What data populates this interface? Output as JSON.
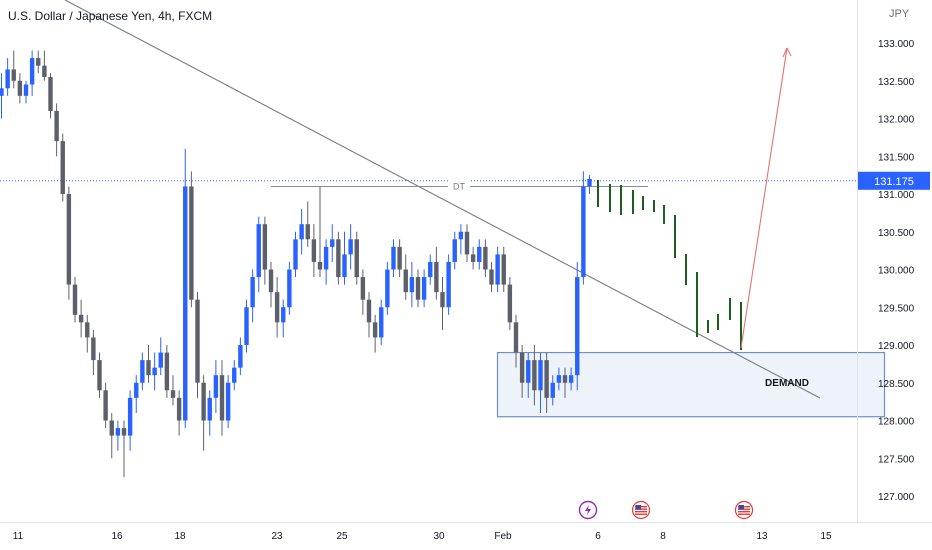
{
  "header": {
    "title": "U.S. Dollar / Japanese Yen, 4h, FXCM",
    "currency": "JPY"
  },
  "price_badge": "131.175",
  "annotations": {
    "dt_label": "DT",
    "demand_label": "DEMAND"
  },
  "event_icons": [
    "lightning-event-icon",
    "us-flag-icon",
    "us-flag-icon"
  ],
  "colors": {
    "up_candle": "#2962ff",
    "down_candle": "#5d606b",
    "projection": "#1b5e20",
    "target_arrow": "#e57373",
    "trendline": "#787b86",
    "demand_border": "#6f8fc3",
    "demand_fill": "#eef3fa",
    "price_line": "#2962ff"
  },
  "chart_data": {
    "type": "candlestick",
    "title": "U.S. Dollar / Japanese Yen, 4h, FXCM",
    "y_axis_label": "JPY",
    "ylim": [
      126.8,
      133.3
    ],
    "y_ticks": [
      "133.000",
      "132.500",
      "132.000",
      "131.500",
      "131.000",
      "130.500",
      "130.000",
      "129.500",
      "129.000",
      "128.500",
      "128.000",
      "127.500",
      "127.000"
    ],
    "x_ticks": [
      "11",
      "16",
      "18",
      "23",
      "25",
      "30",
      "Feb",
      "6",
      "8",
      "13",
      "15"
    ],
    "last_price": 131.175,
    "candles": [
      {
        "o": 132.3,
        "h": 132.6,
        "l": 132.0,
        "c": 132.4
      },
      {
        "o": 132.4,
        "h": 132.8,
        "l": 132.3,
        "c": 132.65
      },
      {
        "o": 132.65,
        "h": 132.9,
        "l": 132.4,
        "c": 132.5
      },
      {
        "o": 132.5,
        "h": 132.6,
        "l": 132.2,
        "c": 132.3
      },
      {
        "o": 132.3,
        "h": 132.5,
        "l": 132.2,
        "c": 132.45
      },
      {
        "o": 132.45,
        "h": 132.9,
        "l": 132.3,
        "c": 132.8
      },
      {
        "o": 132.8,
        "h": 132.9,
        "l": 132.6,
        "c": 132.7
      },
      {
        "o": 132.7,
        "h": 132.9,
        "l": 132.5,
        "c": 132.55
      },
      {
        "o": 132.55,
        "h": 132.6,
        "l": 132.0,
        "c": 132.1
      },
      {
        "o": 132.1,
        "h": 132.2,
        "l": 131.5,
        "c": 131.7
      },
      {
        "o": 131.7,
        "h": 131.8,
        "l": 130.9,
        "c": 131.0
      },
      {
        "o": 131.0,
        "h": 131.1,
        "l": 129.6,
        "c": 129.8
      },
      {
        "o": 129.8,
        "h": 129.9,
        "l": 129.3,
        "c": 129.4
      },
      {
        "o": 129.4,
        "h": 129.6,
        "l": 129.1,
        "c": 129.3
      },
      {
        "o": 129.3,
        "h": 129.4,
        "l": 128.9,
        "c": 129.1
      },
      {
        "o": 129.1,
        "h": 129.2,
        "l": 128.6,
        "c": 128.8
      },
      {
        "o": 128.8,
        "h": 128.9,
        "l": 128.3,
        "c": 128.4
      },
      {
        "o": 128.4,
        "h": 128.5,
        "l": 127.9,
        "c": 128.0
      },
      {
        "o": 128.0,
        "h": 128.1,
        "l": 127.5,
        "c": 127.8
      },
      {
        "o": 127.8,
        "h": 128.0,
        "l": 127.6,
        "c": 127.9
      },
      {
        "o": 127.9,
        "h": 128.0,
        "l": 127.25,
        "c": 127.8
      },
      {
        "o": 127.8,
        "h": 128.4,
        "l": 127.6,
        "c": 128.3
      },
      {
        "o": 128.3,
        "h": 128.6,
        "l": 128.1,
        "c": 128.5
      },
      {
        "o": 128.5,
        "h": 128.9,
        "l": 128.4,
        "c": 128.8
      },
      {
        "o": 128.8,
        "h": 129.0,
        "l": 128.5,
        "c": 128.6
      },
      {
        "o": 128.6,
        "h": 128.9,
        "l": 128.4,
        "c": 128.7
      },
      {
        "o": 128.7,
        "h": 129.1,
        "l": 128.6,
        "c": 128.9
      },
      {
        "o": 128.9,
        "h": 129.0,
        "l": 128.3,
        "c": 128.4
      },
      {
        "o": 128.4,
        "h": 128.6,
        "l": 128.2,
        "c": 128.3
      },
      {
        "o": 128.3,
        "h": 128.4,
        "l": 127.8,
        "c": 128.0
      },
      {
        "o": 128.0,
        "h": 131.6,
        "l": 127.9,
        "c": 131.1
      },
      {
        "o": 131.1,
        "h": 131.3,
        "l": 129.5,
        "c": 129.6
      },
      {
        "o": 129.6,
        "h": 129.7,
        "l": 128.3,
        "c": 128.5
      },
      {
        "o": 128.5,
        "h": 128.6,
        "l": 127.6,
        "c": 128.0
      },
      {
        "o": 128.0,
        "h": 128.4,
        "l": 127.8,
        "c": 128.3
      },
      {
        "o": 128.3,
        "h": 128.8,
        "l": 128.1,
        "c": 128.6
      },
      {
        "o": 128.6,
        "h": 128.8,
        "l": 127.8,
        "c": 128.0
      },
      {
        "o": 128.0,
        "h": 128.6,
        "l": 127.9,
        "c": 128.5
      },
      {
        "o": 128.5,
        "h": 128.8,
        "l": 128.4,
        "c": 128.7
      },
      {
        "o": 128.7,
        "h": 129.1,
        "l": 128.6,
        "c": 129.0
      },
      {
        "o": 129.0,
        "h": 129.6,
        "l": 128.9,
        "c": 129.5
      },
      {
        "o": 129.5,
        "h": 130.0,
        "l": 129.3,
        "c": 129.9
      },
      {
        "o": 129.9,
        "h": 130.7,
        "l": 129.7,
        "c": 130.6
      },
      {
        "o": 130.6,
        "h": 130.7,
        "l": 129.8,
        "c": 130.0
      },
      {
        "o": 130.0,
        "h": 130.1,
        "l": 129.5,
        "c": 129.7
      },
      {
        "o": 129.7,
        "h": 129.9,
        "l": 129.1,
        "c": 129.3
      },
      {
        "o": 129.3,
        "h": 129.6,
        "l": 129.1,
        "c": 129.5
      },
      {
        "o": 129.5,
        "h": 130.1,
        "l": 129.4,
        "c": 130.0
      },
      {
        "o": 130.0,
        "h": 130.5,
        "l": 129.9,
        "c": 130.4
      },
      {
        "o": 130.4,
        "h": 130.8,
        "l": 130.2,
        "c": 130.6
      },
      {
        "o": 130.6,
        "h": 130.9,
        "l": 130.3,
        "c": 130.4
      },
      {
        "o": 130.4,
        "h": 130.6,
        "l": 129.9,
        "c": 130.1
      },
      {
        "o": 130.1,
        "h": 131.1,
        "l": 129.9,
        "c": 130.0
      },
      {
        "o": 130.0,
        "h": 130.4,
        "l": 129.8,
        "c": 130.3
      },
      {
        "o": 130.3,
        "h": 130.6,
        "l": 130.1,
        "c": 130.4
      },
      {
        "o": 130.4,
        "h": 130.5,
        "l": 129.8,
        "c": 129.9
      },
      {
        "o": 129.9,
        "h": 130.5,
        "l": 129.8,
        "c": 130.2
      },
      {
        "o": 130.2,
        "h": 130.6,
        "l": 130.0,
        "c": 130.4
      },
      {
        "o": 130.4,
        "h": 130.5,
        "l": 129.8,
        "c": 129.9
      },
      {
        "o": 129.9,
        "h": 130.0,
        "l": 129.4,
        "c": 129.6
      },
      {
        "o": 129.6,
        "h": 129.7,
        "l": 129.1,
        "c": 129.3
      },
      {
        "o": 129.3,
        "h": 129.4,
        "l": 128.9,
        "c": 129.1
      },
      {
        "o": 129.1,
        "h": 129.6,
        "l": 129.0,
        "c": 129.5
      },
      {
        "o": 129.5,
        "h": 130.1,
        "l": 129.4,
        "c": 130.0
      },
      {
        "o": 130.0,
        "h": 130.4,
        "l": 129.9,
        "c": 130.3
      },
      {
        "o": 130.3,
        "h": 130.4,
        "l": 129.9,
        "c": 130.0
      },
      {
        "o": 130.0,
        "h": 130.2,
        "l": 129.6,
        "c": 129.7
      },
      {
        "o": 129.7,
        "h": 130.1,
        "l": 129.5,
        "c": 129.9
      },
      {
        "o": 129.9,
        "h": 130.0,
        "l": 129.5,
        "c": 129.6
      },
      {
        "o": 129.6,
        "h": 130.0,
        "l": 129.5,
        "c": 129.9
      },
      {
        "o": 129.9,
        "h": 130.2,
        "l": 129.8,
        "c": 130.1
      },
      {
        "o": 130.1,
        "h": 130.3,
        "l": 129.6,
        "c": 129.7
      },
      {
        "o": 129.7,
        "h": 129.9,
        "l": 129.2,
        "c": 129.5
      },
      {
        "o": 129.5,
        "h": 130.2,
        "l": 129.4,
        "c": 130.1
      },
      {
        "o": 130.1,
        "h": 130.5,
        "l": 130.0,
        "c": 130.4
      },
      {
        "o": 130.4,
        "h": 130.6,
        "l": 130.2,
        "c": 130.5
      },
      {
        "o": 130.5,
        "h": 130.6,
        "l": 130.1,
        "c": 130.2
      },
      {
        "o": 130.2,
        "h": 130.3,
        "l": 130.0,
        "c": 130.1
      },
      {
        "o": 130.1,
        "h": 130.4,
        "l": 130.0,
        "c": 130.3
      },
      {
        "o": 130.3,
        "h": 130.4,
        "l": 129.9,
        "c": 130.0
      },
      {
        "o": 130.0,
        "h": 130.1,
        "l": 129.7,
        "c": 129.8
      },
      {
        "o": 129.8,
        "h": 130.3,
        "l": 129.7,
        "c": 130.2
      },
      {
        "o": 130.2,
        "h": 130.3,
        "l": 129.7,
        "c": 129.8
      },
      {
        "o": 129.8,
        "h": 129.9,
        "l": 129.2,
        "c": 129.3
      },
      {
        "o": 129.3,
        "h": 129.4,
        "l": 128.7,
        "c": 128.9
      },
      {
        "o": 128.9,
        "h": 129.0,
        "l": 128.3,
        "c": 128.5
      },
      {
        "o": 128.5,
        "h": 128.9,
        "l": 128.3,
        "c": 128.8
      },
      {
        "o": 128.8,
        "h": 129.0,
        "l": 128.2,
        "c": 128.4
      },
      {
        "o": 128.4,
        "h": 128.9,
        "l": 128.1,
        "c": 128.8
      },
      {
        "o": 128.8,
        "h": 128.9,
        "l": 128.1,
        "c": 128.3
      },
      {
        "o": 128.3,
        "h": 128.6,
        "l": 128.2,
        "c": 128.5
      },
      {
        "o": 128.5,
        "h": 128.7,
        "l": 128.4,
        "c": 128.6
      },
      {
        "o": 128.6,
        "h": 128.7,
        "l": 128.3,
        "c": 128.5
      },
      {
        "o": 128.5,
        "h": 128.7,
        "l": 128.4,
        "c": 128.6
      },
      {
        "o": 128.6,
        "h": 130.1,
        "l": 128.4,
        "c": 129.9
      },
      {
        "o": 129.9,
        "h": 131.3,
        "l": 129.8,
        "c": 131.1
      },
      {
        "o": 131.1,
        "h": 131.25,
        "l": 131.0,
        "c": 131.2
      }
    ],
    "projection_path": [
      {
        "x": "Feb 5",
        "price": 131.2
      },
      {
        "x": "Feb 7",
        "price": 130.9
      },
      {
        "x": "Feb 8",
        "price": 130.8
      },
      {
        "x": "Feb 9",
        "price": 130.2
      },
      {
        "x": "Feb 10",
        "price": 129.1
      },
      {
        "x": "Feb 11",
        "price": 129.5
      },
      {
        "x": "Feb 12",
        "price": 128.95
      }
    ],
    "target": {
      "price": 133.05
    },
    "resistance_level": 131.1,
    "demand_zone": [
      128.05,
      128.9
    ]
  }
}
